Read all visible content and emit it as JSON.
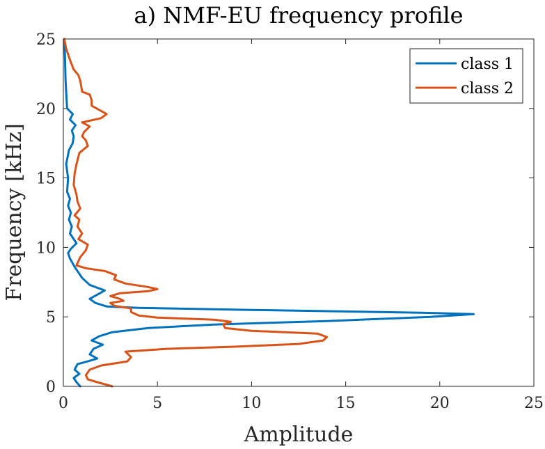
{
  "chart_data": {
    "type": "line",
    "title": "a) NMF-EU frequency profile",
    "xlabel": "Amplitude",
    "ylabel": "Frequency [kHz]",
    "xlim": [
      0,
      25
    ],
    "ylim": [
      0,
      25
    ],
    "xticks": [
      0,
      5,
      10,
      15,
      20,
      25
    ],
    "yticks": [
      0,
      5,
      10,
      15,
      20,
      25
    ],
    "legend_position": "top-right",
    "series": [
      {
        "name": "class 1",
        "color": "#0072BD",
        "points": [
          [
            0.9,
            0.0
          ],
          [
            0.7,
            0.3
          ],
          [
            0.55,
            0.6
          ],
          [
            0.85,
            0.9
          ],
          [
            0.6,
            1.2
          ],
          [
            0.75,
            1.6
          ],
          [
            1.3,
            1.8
          ],
          [
            1.8,
            2.0
          ],
          [
            1.4,
            2.3
          ],
          [
            1.6,
            2.7
          ],
          [
            2.1,
            3.0
          ],
          [
            1.5,
            3.3
          ],
          [
            1.9,
            3.6
          ],
          [
            2.6,
            3.9
          ],
          [
            4.5,
            4.2
          ],
          [
            8.0,
            4.45
          ],
          [
            14.0,
            4.7
          ],
          [
            19.5,
            5.0
          ],
          [
            21.8,
            5.2
          ],
          [
            19.0,
            5.3
          ],
          [
            10.0,
            5.5
          ],
          [
            4.0,
            5.65
          ],
          [
            2.3,
            5.75
          ],
          [
            1.7,
            6.0
          ],
          [
            1.4,
            6.3
          ],
          [
            1.8,
            6.6
          ],
          [
            2.2,
            6.9
          ],
          [
            1.4,
            7.3
          ],
          [
            1.0,
            7.8
          ],
          [
            0.6,
            8.6
          ],
          [
            0.35,
            9.2
          ],
          [
            0.25,
            9.6
          ],
          [
            0.4,
            9.9
          ],
          [
            0.7,
            10.3
          ],
          [
            0.5,
            10.7
          ],
          [
            0.35,
            11.0
          ],
          [
            0.45,
            11.5
          ],
          [
            0.3,
            12.0
          ],
          [
            0.4,
            12.5
          ],
          [
            0.25,
            13.0
          ],
          [
            0.35,
            13.5
          ],
          [
            0.2,
            14.0
          ],
          [
            0.25,
            15.0
          ],
          [
            0.15,
            16.0
          ],
          [
            0.3,
            17.0
          ],
          [
            0.5,
            17.5
          ],
          [
            0.55,
            18.0
          ],
          [
            0.45,
            18.4
          ],
          [
            0.65,
            18.8
          ],
          [
            0.35,
            19.2
          ],
          [
            0.5,
            19.6
          ],
          [
            0.2,
            20.0
          ],
          [
            0.12,
            22.0
          ],
          [
            0.08,
            24.0
          ],
          [
            0.05,
            25.0
          ]
        ]
      },
      {
        "name": "class 2",
        "color": "#D95319",
        "points": [
          [
            2.6,
            0.0
          ],
          [
            1.8,
            0.3
          ],
          [
            1.3,
            0.5
          ],
          [
            1.2,
            0.8
          ],
          [
            1.4,
            1.2
          ],
          [
            2.0,
            1.5
          ],
          [
            3.4,
            1.8
          ],
          [
            3.6,
            2.1
          ],
          [
            3.3,
            2.5
          ],
          [
            5.5,
            2.7
          ],
          [
            9.0,
            2.85
          ],
          [
            12.5,
            3.05
          ],
          [
            13.8,
            3.3
          ],
          [
            14.0,
            3.55
          ],
          [
            13.5,
            3.8
          ],
          [
            10.0,
            4.0
          ],
          [
            8.6,
            4.2
          ],
          [
            8.5,
            4.45
          ],
          [
            8.9,
            4.65
          ],
          [
            8.0,
            4.8
          ],
          [
            5.0,
            4.95
          ],
          [
            4.0,
            5.1
          ],
          [
            3.6,
            5.35
          ],
          [
            3.6,
            5.6
          ],
          [
            2.7,
            5.8
          ],
          [
            2.5,
            6.0
          ],
          [
            3.2,
            6.15
          ],
          [
            3.0,
            6.3
          ],
          [
            2.5,
            6.5
          ],
          [
            3.0,
            6.7
          ],
          [
            4.5,
            6.85
          ],
          [
            5.0,
            7.0
          ],
          [
            4.5,
            7.15
          ],
          [
            3.3,
            7.4
          ],
          [
            2.7,
            7.7
          ],
          [
            2.8,
            8.0
          ],
          [
            2.2,
            8.3
          ],
          [
            1.2,
            8.5
          ],
          [
            0.7,
            8.7
          ],
          [
            0.9,
            9.3
          ],
          [
            1.2,
            9.8
          ],
          [
            1.3,
            10.2
          ],
          [
            0.8,
            10.6
          ],
          [
            1.0,
            11.0
          ],
          [
            0.75,
            11.5
          ],
          [
            0.85,
            12.0
          ],
          [
            0.6,
            12.3
          ],
          [
            0.9,
            12.8
          ],
          [
            0.75,
            13.3
          ],
          [
            0.7,
            13.8
          ],
          [
            0.55,
            14.5
          ],
          [
            0.6,
            15.3
          ],
          [
            0.7,
            16.0
          ],
          [
            0.85,
            16.8
          ],
          [
            1.3,
            17.3
          ],
          [
            1.2,
            17.7
          ],
          [
            1.0,
            18.0
          ],
          [
            1.1,
            18.3
          ],
          [
            1.4,
            18.7
          ],
          [
            1.0,
            19.0
          ],
          [
            2.0,
            19.3
          ],
          [
            2.3,
            19.6
          ],
          [
            1.9,
            19.9
          ],
          [
            1.5,
            20.2
          ],
          [
            1.5,
            20.6
          ],
          [
            1.4,
            21.0
          ],
          [
            1.0,
            21.2
          ],
          [
            0.95,
            21.6
          ],
          [
            0.9,
            22.0
          ],
          [
            0.8,
            22.4
          ],
          [
            0.55,
            22.8
          ],
          [
            0.35,
            23.5
          ],
          [
            0.15,
            24.3
          ],
          [
            0.05,
            25.0
          ]
        ]
      }
    ]
  }
}
